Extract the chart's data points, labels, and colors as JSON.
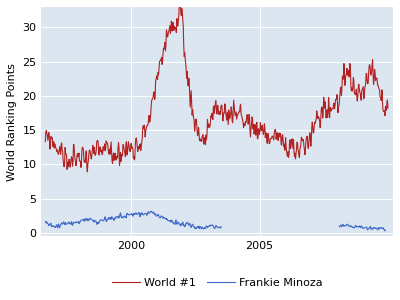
{
  "title": "",
  "ylabel": "World Ranking Points",
  "xlabel": "",
  "plot_bg_color": "#dce6f1",
  "fig_bg_color": "#ffffff",
  "frankie_color": "#4169c8",
  "world1_color": "#b22222",
  "legend_labels": [
    "Frankie Minoza",
    "World #1"
  ],
  "yticks": [
    0,
    5,
    10,
    15,
    20,
    25,
    30
  ],
  "xticks": [
    2000,
    2005
  ],
  "xlim": [
    1996.5,
    2010.2
  ],
  "ylim": [
    -0.5,
    33
  ],
  "linewidth": 0.8,
  "ylabel_fontsize": 8,
  "tick_fontsize": 8,
  "legend_fontsize": 8
}
